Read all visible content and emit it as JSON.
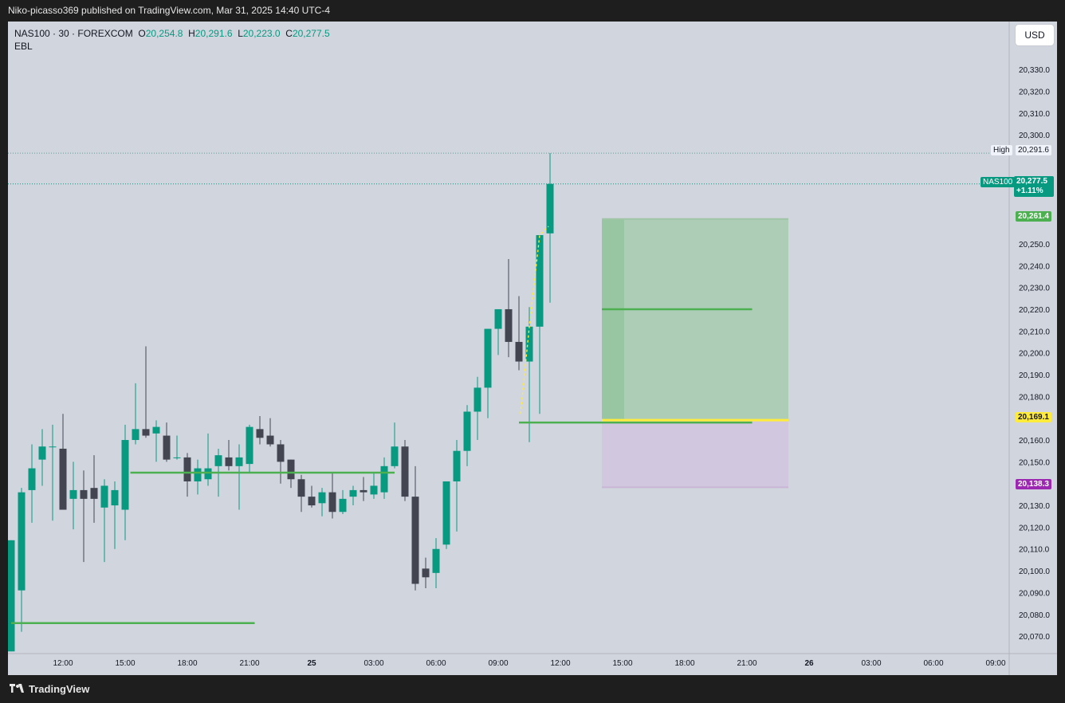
{
  "header": {
    "published": "Niko-picasso369 published on TradingView.com, Mar 31, 2025 14:40 UTC-4"
  },
  "legend": {
    "symbol": "NAS100 · 30 · FOREXCOM",
    "o_label": "O",
    "o_value": "20,254.8",
    "h_label": "H",
    "h_value": "20,291.6",
    "l_label": "L",
    "l_value": "20,223.0",
    "c_label": "C",
    "c_value": "20,277.5",
    "indicator": "EBL"
  },
  "currency_button": "USD",
  "footer": {
    "brand": "TradingView"
  },
  "price_tags": {
    "high_label": "High",
    "high_value": "20,291.6",
    "symbol_label": "NAS100",
    "last_value": "20,277.5",
    "last_change": "+1.11%",
    "target_value": "20,261.4",
    "entry_value": "20,169.1",
    "stop_value": "20,138.3"
  },
  "colors": {
    "up": "#089981",
    "down": "#434651",
    "background": "#d1d5de",
    "level": "#4caf50",
    "profit_zone": "#a8cbb0",
    "loss_zone": "#d1c4de",
    "entry": "#ffeb3b",
    "stop_tag": "#9c27b0",
    "target_tag": "#4caf50"
  },
  "chart_data": {
    "type": "candlestick",
    "timeframe": "30",
    "symbol": "NAS100",
    "ylim": [
      20062,
      20352
    ],
    "y_ticks": [
      20070,
      20080,
      20090,
      20100,
      20110,
      20120,
      20130,
      20150,
      20160,
      20170,
      20180,
      20190,
      20200,
      20210,
      20220,
      20230,
      20240,
      20250,
      20300,
      20310,
      20320,
      20330
    ],
    "x_ticks": [
      {
        "label": "12:00",
        "slot": 5
      },
      {
        "label": "15:00",
        "slot": 11
      },
      {
        "label": "18:00",
        "slot": 17
      },
      {
        "label": "21:00",
        "slot": 23
      },
      {
        "label": "25",
        "slot": 29
      },
      {
        "label": "03:00",
        "slot": 35
      },
      {
        "label": "06:00",
        "slot": 41
      },
      {
        "label": "09:00",
        "slot": 47
      },
      {
        "label": "12:00",
        "slot": 53
      },
      {
        "label": "15:00",
        "slot": 59
      },
      {
        "label": "18:00",
        "slot": 65
      },
      {
        "label": "21:00",
        "slot": 71
      },
      {
        "label": "26",
        "slot": 77
      },
      {
        "label": "03:00",
        "slot": 83
      },
      {
        "label": "06:00",
        "slot": 89
      },
      {
        "label": "09:00",
        "slot": 95
      }
    ],
    "candles": [
      {
        "o": 20063,
        "h": 20114,
        "l": 20063,
        "c": 20114
      },
      {
        "o": 20091,
        "h": 20138,
        "l": 20072,
        "c": 20136
      },
      {
        "o": 20137,
        "h": 20158,
        "l": 20122,
        "c": 20147
      },
      {
        "o": 20151,
        "h": 20165,
        "l": 20139,
        "c": 20157
      },
      {
        "o": 20157,
        "h": 20167,
        "l": 20123,
        "c": 20157
      },
      {
        "o": 20156,
        "h": 20172,
        "l": 20128,
        "c": 20128
      },
      {
        "o": 20133,
        "h": 20150,
        "l": 20119,
        "c": 20137
      },
      {
        "o": 20137,
        "h": 20146,
        "l": 20104,
        "c": 20133
      },
      {
        "o": 20138,
        "h": 20153,
        "l": 20122,
        "c": 20133
      },
      {
        "o": 20129,
        "h": 20142,
        "l": 20104,
        "c": 20139
      },
      {
        "o": 20130,
        "h": 20141,
        "l": 20110,
        "c": 20137
      },
      {
        "o": 20128,
        "h": 20167,
        "l": 20114,
        "c": 20160
      },
      {
        "o": 20160,
        "h": 20186,
        "l": 20158,
        "c": 20165
      },
      {
        "o": 20165,
        "h": 20203,
        "l": 20161,
        "c": 20162
      },
      {
        "o": 20163,
        "h": 20169,
        "l": 20150,
        "c": 20166
      },
      {
        "o": 20162,
        "h": 20168,
        "l": 20150,
        "c": 20151
      },
      {
        "o": 20152,
        "h": 20162,
        "l": 20151,
        "c": 20152
      },
      {
        "o": 20152,
        "h": 20154,
        "l": 20134,
        "c": 20141
      },
      {
        "o": 20141,
        "h": 20151,
        "l": 20135,
        "c": 20147
      },
      {
        "o": 20142,
        "h": 20163,
        "l": 20139,
        "c": 20147
      },
      {
        "o": 20148,
        "h": 20156,
        "l": 20134,
        "c": 20153
      },
      {
        "o": 20152,
        "h": 20160,
        "l": 20146,
        "c": 20148
      },
      {
        "o": 20148,
        "h": 20158,
        "l": 20128,
        "c": 20152
      },
      {
        "o": 20149,
        "h": 20167,
        "l": 20145,
        "c": 20166
      },
      {
        "o": 20165,
        "h": 20171,
        "l": 20158,
        "c": 20161
      },
      {
        "o": 20162,
        "h": 20170,
        "l": 20157,
        "c": 20158
      },
      {
        "o": 20158,
        "h": 20160,
        "l": 20140,
        "c": 20150
      },
      {
        "o": 20151,
        "h": 20151,
        "l": 20138,
        "c": 20142
      },
      {
        "o": 20142,
        "h": 20144,
        "l": 20127,
        "c": 20134
      },
      {
        "o": 20134,
        "h": 20139,
        "l": 20129,
        "c": 20130
      },
      {
        "o": 20131,
        "h": 20138,
        "l": 20125,
        "c": 20136
      },
      {
        "o": 20136,
        "h": 20145,
        "l": 20124,
        "c": 20127
      },
      {
        "o": 20127,
        "h": 20137,
        "l": 20126,
        "c": 20133
      },
      {
        "o": 20134,
        "h": 20139,
        "l": 20130,
        "c": 20137
      },
      {
        "o": 20137,
        "h": 20143,
        "l": 20132,
        "c": 20136
      },
      {
        "o": 20135,
        "h": 20145,
        "l": 20133,
        "c": 20139
      },
      {
        "o": 20136,
        "h": 20152,
        "l": 20133,
        "c": 20148
      },
      {
        "o": 20148,
        "h": 20168,
        "l": 20147,
        "c": 20157
      },
      {
        "o": 20157,
        "h": 20160,
        "l": 20132,
        "c": 20134
      },
      {
        "o": 20134,
        "h": 20148,
        "l": 20091,
        "c": 20094
      },
      {
        "o": 20101,
        "h": 20106,
        "l": 20092,
        "c": 20097
      },
      {
        "o": 20099,
        "h": 20115,
        "l": 20092,
        "c": 20110
      },
      {
        "o": 20112,
        "h": 20141,
        "l": 20110,
        "c": 20141
      },
      {
        "o": 20141,
        "h": 20160,
        "l": 20118,
        "c": 20155
      },
      {
        "o": 20155,
        "h": 20176,
        "l": 20148,
        "c": 20173
      },
      {
        "o": 20173,
        "h": 20189,
        "l": 20160,
        "c": 20184
      },
      {
        "o": 20184,
        "h": 20211,
        "l": 20170,
        "c": 20211
      },
      {
        "o": 20211,
        "h": 20220,
        "l": 20199,
        "c": 20220
      },
      {
        "o": 20220,
        "h": 20243,
        "l": 20198,
        "c": 20205
      },
      {
        "o": 20205,
        "h": 20226,
        "l": 20192,
        "c": 20196
      },
      {
        "o": 20196,
        "h": 20221,
        "l": 20159,
        "c": 20212
      },
      {
        "o": 20212,
        "h": 20254,
        "l": 20172,
        "c": 20254
      },
      {
        "o": 20254.8,
        "h": 20291.6,
        "l": 20223.0,
        "c": 20277.5
      }
    ],
    "levels": [
      {
        "price": 20076,
        "from": 0,
        "to": 23.5
      },
      {
        "price": 20145,
        "from": 11.5,
        "to": 37
      },
      {
        "price": 20168,
        "from": 49,
        "to": 71.5
      },
      {
        "price": 20220,
        "from": 57,
        "to": 71.5
      }
    ],
    "position": {
      "entry": 20169.1,
      "target": 20261.4,
      "stop": 20138.3,
      "from": 57,
      "to": 75
    },
    "high": 20291.6,
    "last": 20277.5,
    "event_slot": 111
  }
}
